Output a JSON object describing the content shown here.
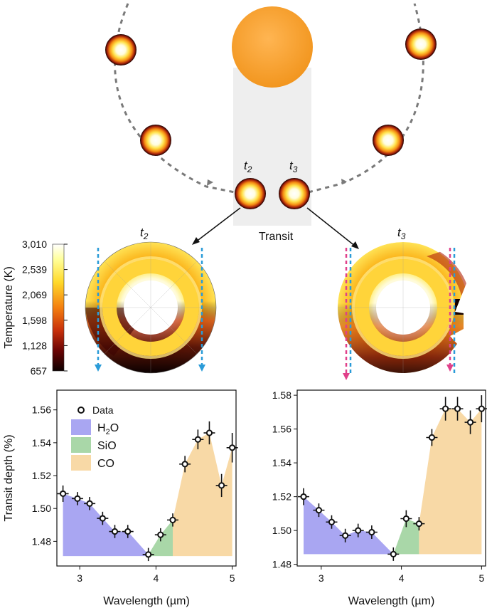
{
  "orbit": {
    "transit_label": "Transit",
    "t2_label": "t",
    "t2_sub": "2",
    "t3_label": "t",
    "t3_sub": "3"
  },
  "colorbar": {
    "label": "Temperature (K)",
    "ticks": [
      "3,010",
      "2,539",
      "2,069",
      "1,598",
      "1,128",
      "657"
    ],
    "min": 657,
    "max": 3010
  },
  "maps": {
    "left_title": "t",
    "left_sub": "2",
    "right_title": "t",
    "right_sub": "3",
    "left_limb_color": "#2a9bd8",
    "right_limb_colors": [
      "#e0408a",
      "#2a9bd8"
    ]
  },
  "legend": {
    "data": "Data",
    "h2o_main": "H",
    "h2o_sub": "2",
    "h2o_tail": "O",
    "sio": "SiO",
    "co": "CO",
    "colors": {
      "h2o": "#a9a6f2",
      "sio": "#a9d7a8",
      "co": "#f8d9a6"
    }
  },
  "chart_data": [
    {
      "type": "scatter",
      "xlabel": "Wavelength (µm)",
      "ylabel": "Transit depth (%)",
      "xlim": [
        2.7,
        5.05
      ],
      "ylim": [
        1.465,
        1.572
      ],
      "xticks": [
        3,
        4,
        5
      ],
      "yticks": [
        1.48,
        1.5,
        1.52,
        1.54,
        1.56
      ],
      "ytick_labels": [
        "1.48",
        "1.50",
        "1.52",
        "1.54",
        "1.56"
      ],
      "xtick_labels": [
        "3",
        "4",
        "5"
      ],
      "baseline": 1.471,
      "points": [
        {
          "x": 2.78,
          "y": 1.509,
          "yerr": 0.005
        },
        {
          "x": 2.97,
          "y": 1.506,
          "yerr": 0.004
        },
        {
          "x": 3.13,
          "y": 1.503,
          "yerr": 0.004
        },
        {
          "x": 3.3,
          "y": 1.494,
          "yerr": 0.004
        },
        {
          "x": 3.46,
          "y": 1.486,
          "yerr": 0.004
        },
        {
          "x": 3.63,
          "y": 1.486,
          "yerr": 0.004
        },
        {
          "x": 3.9,
          "y": 1.472,
          "yerr": 0.004
        },
        {
          "x": 4.06,
          "y": 1.484,
          "yerr": 0.004
        },
        {
          "x": 4.22,
          "y": 1.493,
          "yerr": 0.004
        },
        {
          "x": 4.38,
          "y": 1.527,
          "yerr": 0.005
        },
        {
          "x": 4.55,
          "y": 1.542,
          "yerr": 0.006
        },
        {
          "x": 4.7,
          "y": 1.546,
          "yerr": 0.007
        },
        {
          "x": 4.86,
          "y": 1.514,
          "yerr": 0.007
        },
        {
          "x": 5.0,
          "y": 1.537,
          "yerr": 0.009
        }
      ],
      "regions": [
        {
          "name": "H2O",
          "xmin": 2.78,
          "xmax": 3.9
        },
        {
          "name": "SiO",
          "xmin": 3.9,
          "xmax": 4.22
        },
        {
          "name": "CO",
          "xmin": 4.22,
          "xmax": 5.0
        }
      ]
    },
    {
      "type": "scatter",
      "xlabel": "Wavelength (µm)",
      "ylabel": "",
      "xlim": [
        2.7,
        5.05
      ],
      "ylim": [
        1.479,
        1.583
      ],
      "xticks": [
        3,
        4,
        5
      ],
      "yticks": [
        1.48,
        1.5,
        1.52,
        1.54,
        1.56,
        1.58
      ],
      "ytick_labels": [
        "1.48",
        "1.50",
        "1.52",
        "1.54",
        "1.56",
        "1.58"
      ],
      "xtick_labels": [
        "3",
        "4",
        "5"
      ],
      "baseline": 1.486,
      "points": [
        {
          "x": 2.78,
          "y": 1.52,
          "yerr": 0.005
        },
        {
          "x": 2.97,
          "y": 1.512,
          "yerr": 0.004
        },
        {
          "x": 3.13,
          "y": 1.505,
          "yerr": 0.004
        },
        {
          "x": 3.3,
          "y": 1.497,
          "yerr": 0.004
        },
        {
          "x": 3.46,
          "y": 1.5,
          "yerr": 0.004
        },
        {
          "x": 3.63,
          "y": 1.499,
          "yerr": 0.004
        },
        {
          "x": 3.9,
          "y": 1.486,
          "yerr": 0.004
        },
        {
          "x": 4.06,
          "y": 1.507,
          "yerr": 0.005
        },
        {
          "x": 4.22,
          "y": 1.504,
          "yerr": 0.004
        },
        {
          "x": 4.38,
          "y": 1.555,
          "yerr": 0.005
        },
        {
          "x": 4.55,
          "y": 1.572,
          "yerr": 0.007
        },
        {
          "x": 4.7,
          "y": 1.572,
          "yerr": 0.007
        },
        {
          "x": 4.86,
          "y": 1.564,
          "yerr": 0.007
        },
        {
          "x": 5.0,
          "y": 1.572,
          "yerr": 0.008
        }
      ],
      "regions": [
        {
          "name": "H2O",
          "xmin": 2.78,
          "xmax": 3.9
        },
        {
          "name": "SiO",
          "xmin": 3.9,
          "xmax": 4.22
        },
        {
          "name": "CO",
          "xmin": 4.22,
          "xmax": 5.0
        }
      ]
    }
  ]
}
